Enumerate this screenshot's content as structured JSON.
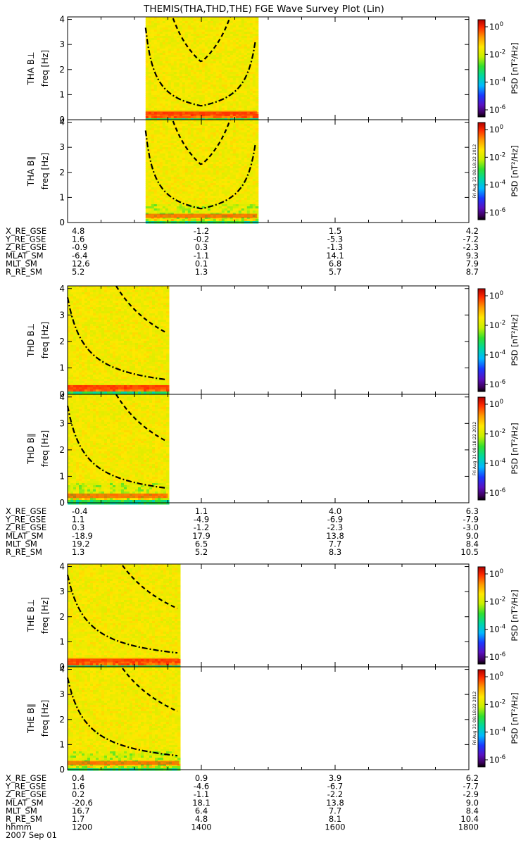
{
  "title": "THEMIS(THA,THD,THE) FGE Wave Survey Plot (Lin)",
  "colorbar": {
    "label_text": "PSD",
    "label_unit": "[nT²/Hz]",
    "ticks": [
      {
        "base": "10",
        "exp": "0"
      },
      {
        "base": "10",
        "exp": "-2"
      },
      {
        "base": "10",
        "exp": "-4"
      },
      {
        "base": "10",
        "exp": "-6"
      }
    ],
    "stamp": "Fri Aug 31 08:18:22 2012"
  },
  "chart_data": [
    {
      "type": "heatmap",
      "probe": "THA",
      "panels": [
        {
          "name": "THA B⊥",
          "probe_label": "THA B⊥",
          "ylabel": "freq [Hz]",
          "ylim": [
            0,
            4.1
          ],
          "yticks": [
            "0",
            "1",
            "2",
            "3",
            "4"
          ],
          "data_coverage_hhmm": [
            "1310",
            "1450"
          ]
        },
        {
          "name": "THA B∥",
          "probe_label": "THA B∥",
          "ylabel": "freq [Hz]",
          "ylim": [
            0,
            4.1
          ],
          "yticks": [
            "0",
            "1",
            "2",
            "3",
            "4"
          ],
          "data_coverage_hhmm": [
            "1310",
            "1450"
          ]
        }
      ],
      "ephemeris": [
        {
          "label": "X_RE_GSE",
          "values": [
            "4.8",
            "-1.2",
            "1.5",
            "4.2"
          ]
        },
        {
          "label": "Y_RE_GSE",
          "values": [
            "1.6",
            "-0.2",
            "-5.3",
            "-7.2"
          ]
        },
        {
          "label": "Z_RE_GSE",
          "values": [
            "-0.9",
            "0.3",
            "-1.3",
            "-2.3"
          ]
        },
        {
          "label": "MLAT_SM",
          "values": [
            "-6.4",
            "-1.1",
            "14.1",
            "9.3"
          ]
        },
        {
          "label": "MLT_SM",
          "values": [
            "12.6",
            "0.1",
            "6.8",
            "7.9"
          ]
        },
        {
          "label": "R_RE_SM",
          "values": [
            "5.2",
            "1.3",
            "5.7",
            "8.7"
          ]
        }
      ]
    },
    {
      "type": "heatmap",
      "probe": "THD",
      "panels": [
        {
          "name": "THD B⊥",
          "probe_label": "THD B⊥",
          "ylabel": "freq [Hz]",
          "ylim": [
            0,
            4.1
          ],
          "yticks": [
            "0",
            "1",
            "2",
            "3",
            "4"
          ],
          "data_coverage_hhmm": [
            "1200",
            "1330"
          ]
        },
        {
          "name": "THD B∥",
          "probe_label": "THD B∥",
          "ylabel": "freq [Hz]",
          "ylim": [
            0,
            4.1
          ],
          "yticks": [
            "0",
            "1",
            "2",
            "3",
            "4"
          ],
          "data_coverage_hhmm": [
            "1200",
            "1330"
          ]
        }
      ],
      "ephemeris": [
        {
          "label": "X_RE_GSE",
          "values": [
            "-0.4",
            "1.1",
            "4.0",
            "6.3"
          ]
        },
        {
          "label": "Y_RE_GSE",
          "values": [
            "1.1",
            "-4.9",
            "-6.9",
            "-7.9"
          ]
        },
        {
          "label": "Z_RE_GSE",
          "values": [
            "0.3",
            "-1.2",
            "-2.3",
            "-3.0"
          ]
        },
        {
          "label": "MLAT_SM",
          "values": [
            "-18.9",
            "17.9",
            "13.8",
            "9.0"
          ]
        },
        {
          "label": "MLT_SM",
          "values": [
            "19.2",
            "6.5",
            "7.7",
            "8.4"
          ]
        },
        {
          "label": "R_RE_SM",
          "values": [
            "1.3",
            "5.2",
            "8.3",
            "10.5"
          ]
        }
      ]
    },
    {
      "type": "heatmap",
      "probe": "THE",
      "panels": [
        {
          "name": "THE B⊥",
          "probe_label": "THE B⊥",
          "ylabel": "freq [Hz]",
          "ylim": [
            0,
            4.1
          ],
          "yticks": [
            "0",
            "1",
            "2",
            "3",
            "4"
          ],
          "data_coverage_hhmm": [
            "1200",
            "1340"
          ]
        },
        {
          "name": "THE B∥",
          "probe_label": "THE B∥",
          "ylabel": "freq [Hz]",
          "ylim": [
            0,
            4.1
          ],
          "yticks": [
            "0",
            "1",
            "2",
            "3",
            "4"
          ],
          "data_coverage_hhmm": [
            "1200",
            "1340"
          ]
        }
      ],
      "ephemeris": [
        {
          "label": "X_RE_GSE",
          "values": [
            "0.4",
            "0.9",
            "3.9",
            "6.2"
          ]
        },
        {
          "label": "Y_RE_GSE",
          "values": [
            "1.6",
            "-4.6",
            "-6.7",
            "-7.7"
          ]
        },
        {
          "label": "Z_RE_GSE",
          "values": [
            "0.2",
            "-1.1",
            "-2.2",
            "-2.9"
          ]
        },
        {
          "label": "MLAT_SM",
          "values": [
            "-20.6",
            "18.1",
            "13.8",
            "9.0"
          ]
        },
        {
          "label": "MLT_SM",
          "values": [
            "16.7",
            "6.4",
            "7.7",
            "8.4"
          ]
        },
        {
          "label": "R_RE_SM",
          "values": [
            "1.7",
            "4.8",
            "8.1",
            "10.4"
          ]
        },
        {
          "label": "hhmm",
          "values": [
            "1200",
            "1400",
            "1600",
            "1800"
          ]
        }
      ],
      "date": "2007 Sep 01"
    }
  ]
}
